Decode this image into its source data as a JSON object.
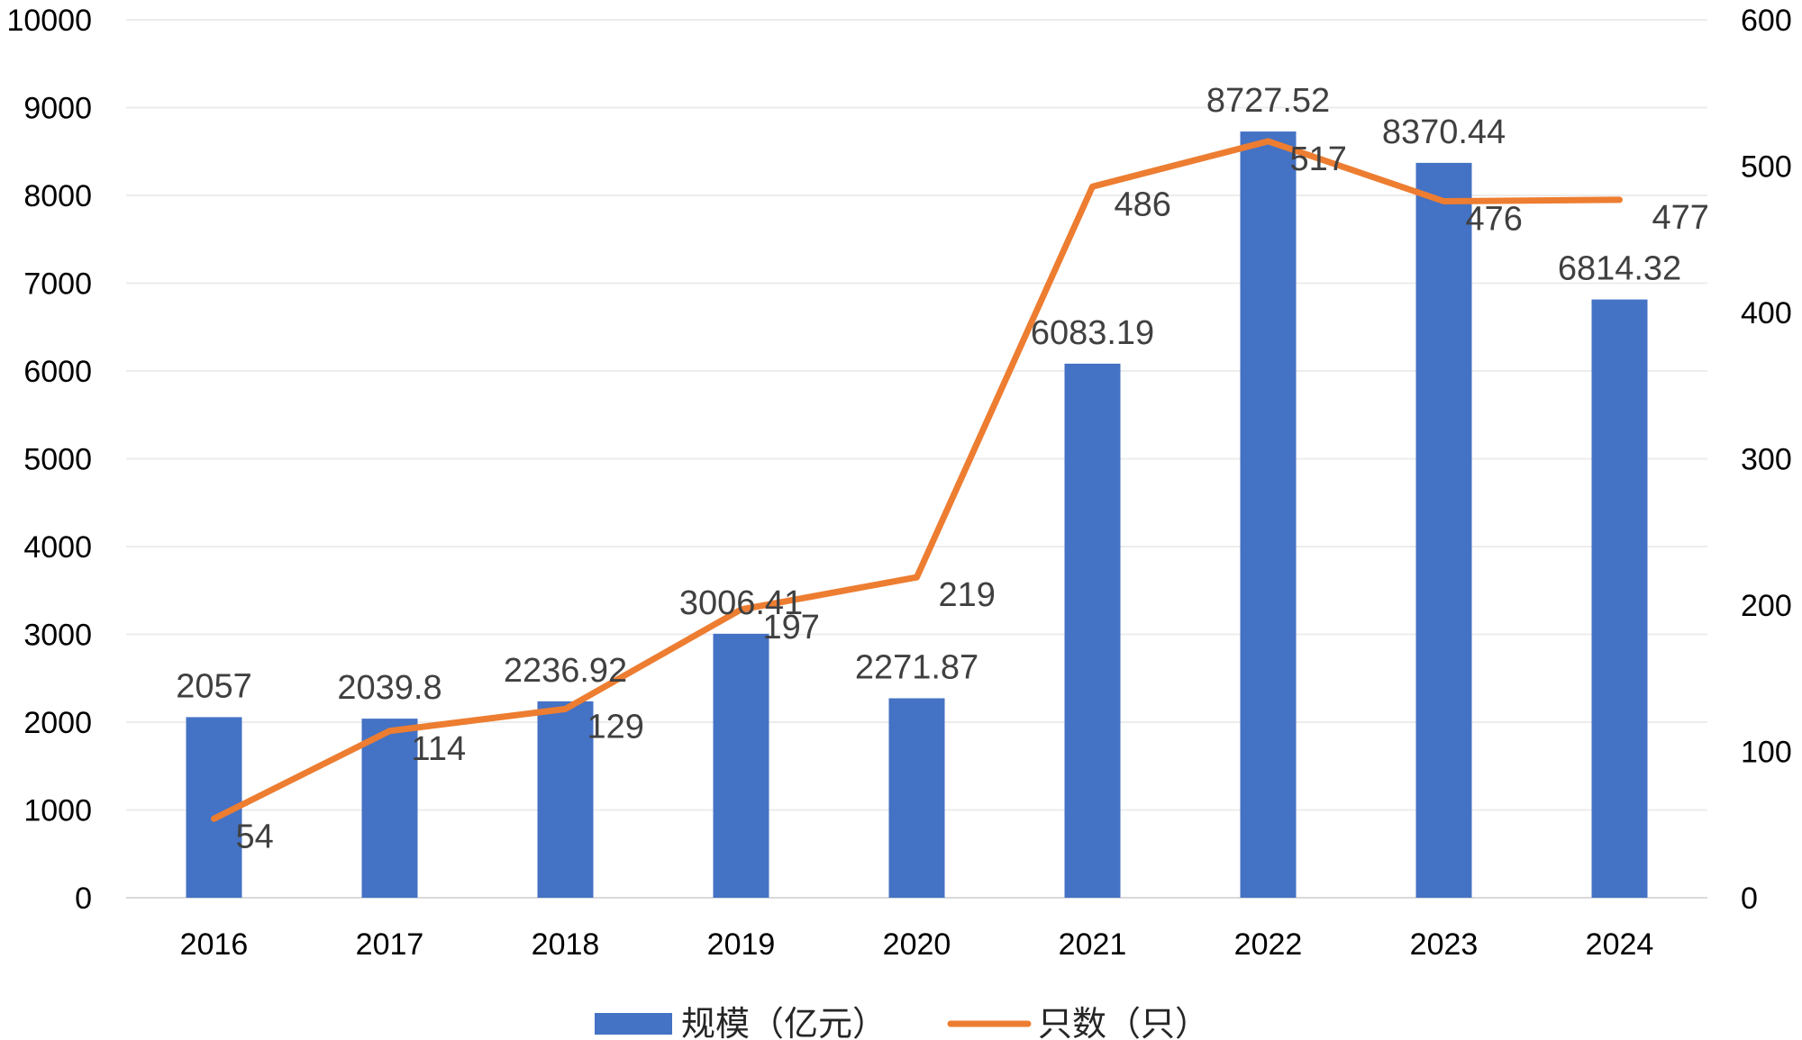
{
  "chart_data": {
    "type": "bar",
    "title": "",
    "categories": [
      "2016",
      "2017",
      "2018",
      "2019",
      "2020",
      "2021",
      "2022",
      "2023",
      "2024"
    ],
    "series": [
      {
        "name": "规模（亿元）",
        "type": "bar",
        "axis": "left",
        "color": "#4472C4",
        "values": [
          2057,
          2039.8,
          2236.92,
          3006.41,
          2271.87,
          6083.19,
          8727.52,
          8370.44,
          6814.32
        ],
        "labels": [
          "2057",
          "2039.8",
          "2236.92",
          "3006.41",
          "2271.87",
          "6083.19",
          "8727.52",
          "8370.44",
          "6814.32"
        ]
      },
      {
        "name": "只数（只）",
        "type": "line",
        "axis": "right",
        "color": "#ED7D31",
        "values": [
          54,
          114,
          129,
          197,
          219,
          486,
          517,
          476,
          477
        ],
        "labels": [
          "54",
          "114",
          "129",
          "197",
          "219",
          "486",
          "517",
          "476",
          "477"
        ]
      }
    ],
    "y_left": {
      "range": [
        0,
        10000
      ],
      "ticks": [
        "0",
        "1000",
        "2000",
        "3000",
        "4000",
        "5000",
        "6000",
        "7000",
        "8000",
        "9000",
        "10000"
      ]
    },
    "y_right": {
      "range": [
        0,
        600
      ],
      "ticks": [
        "0",
        "100",
        "200",
        "300",
        "400",
        "500",
        "600"
      ]
    },
    "grid": true,
    "legend": "bottom-center"
  }
}
